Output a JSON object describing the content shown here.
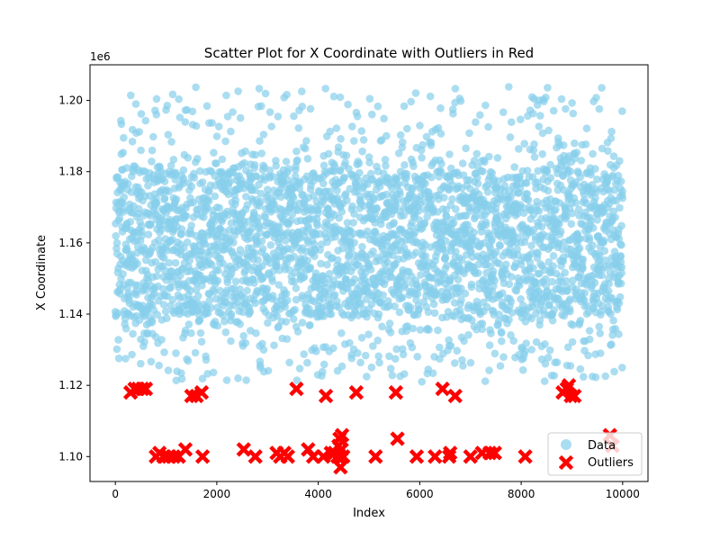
{
  "chart_data": {
    "type": "scatter",
    "title": "Scatter Plot for X Coordinate with Outliers in Red",
    "xlabel": "Index",
    "ylabel": "X Coordinate",
    "y_offset_label": "1e6",
    "xlim": [
      -500,
      10500
    ],
    "ylim": [
      1093000,
      1210000
    ],
    "xticks": [
      0,
      2000,
      4000,
      6000,
      8000,
      10000
    ],
    "xtick_labels": [
      "0",
      "2000",
      "4000",
      "6000",
      "8000",
      "10000"
    ],
    "yticks": [
      1100000,
      1120000,
      1140000,
      1160000,
      1180000,
      1200000
    ],
    "ytick_labels": [
      "1.10",
      "1.12",
      "1.14",
      "1.16",
      "1.18",
      "1.20"
    ],
    "grid": false,
    "legend_position": "lower-right",
    "series": [
      {
        "name": "Data",
        "color": "#87ceeb",
        "marker": "circle",
        "n_points": 10000,
        "x_range": [
          0,
          9999
        ],
        "y_core_range": [
          1140000,
          1180000
        ],
        "y_full_range": [
          1121000,
          1204000
        ]
      },
      {
        "name": "Outliers",
        "color": "#ff0000",
        "marker": "x",
        "points": [
          [
            300,
            1118000
          ],
          [
            380,
            1119000
          ],
          [
            450,
            1119000
          ],
          [
            530,
            1119000
          ],
          [
            600,
            1119000
          ],
          [
            800,
            1100000
          ],
          [
            870,
            1101000
          ],
          [
            950,
            1100000
          ],
          [
            1050,
            1100000
          ],
          [
            1150,
            1100000
          ],
          [
            1250,
            1100000
          ],
          [
            1380,
            1102000
          ],
          [
            1500,
            1117000
          ],
          [
            1600,
            1117000
          ],
          [
            1700,
            1118000
          ],
          [
            1720,
            1100000
          ],
          [
            2530,
            1102000
          ],
          [
            2760,
            1100000
          ],
          [
            3180,
            1101000
          ],
          [
            3250,
            1100000
          ],
          [
            3330,
            1101000
          ],
          [
            3400,
            1100000
          ],
          [
            3570,
            1119000
          ],
          [
            3800,
            1102000
          ],
          [
            3900,
            1100000
          ],
          [
            4100,
            1100000
          ],
          [
            4150,
            1117000
          ],
          [
            4250,
            1101000
          ],
          [
            4320,
            1101000
          ],
          [
            4380,
            1100000
          ],
          [
            4400,
            1103000
          ],
          [
            4420,
            1105000
          ],
          [
            4440,
            1097000
          ],
          [
            4460,
            1102000
          ],
          [
            4470,
            1106000
          ],
          [
            4490,
            1100000
          ],
          [
            4750,
            1118000
          ],
          [
            5130,
            1100000
          ],
          [
            5530,
            1118000
          ],
          [
            5560,
            1105000
          ],
          [
            5940,
            1100000
          ],
          [
            6300,
            1100000
          ],
          [
            6450,
            1119000
          ],
          [
            6580,
            1100000
          ],
          [
            6600,
            1101000
          ],
          [
            6700,
            1117000
          ],
          [
            7000,
            1100000
          ],
          [
            7230,
            1101000
          ],
          [
            7380,
            1101000
          ],
          [
            7480,
            1101000
          ],
          [
            8080,
            1100000
          ],
          [
            8820,
            1118000
          ],
          [
            8900,
            1119000
          ],
          [
            8940,
            1120000
          ],
          [
            8980,
            1117000
          ],
          [
            9050,
            1117000
          ],
          [
            9750,
            1106000
          ],
          [
            9800,
            1103000
          ]
        ]
      }
    ]
  }
}
